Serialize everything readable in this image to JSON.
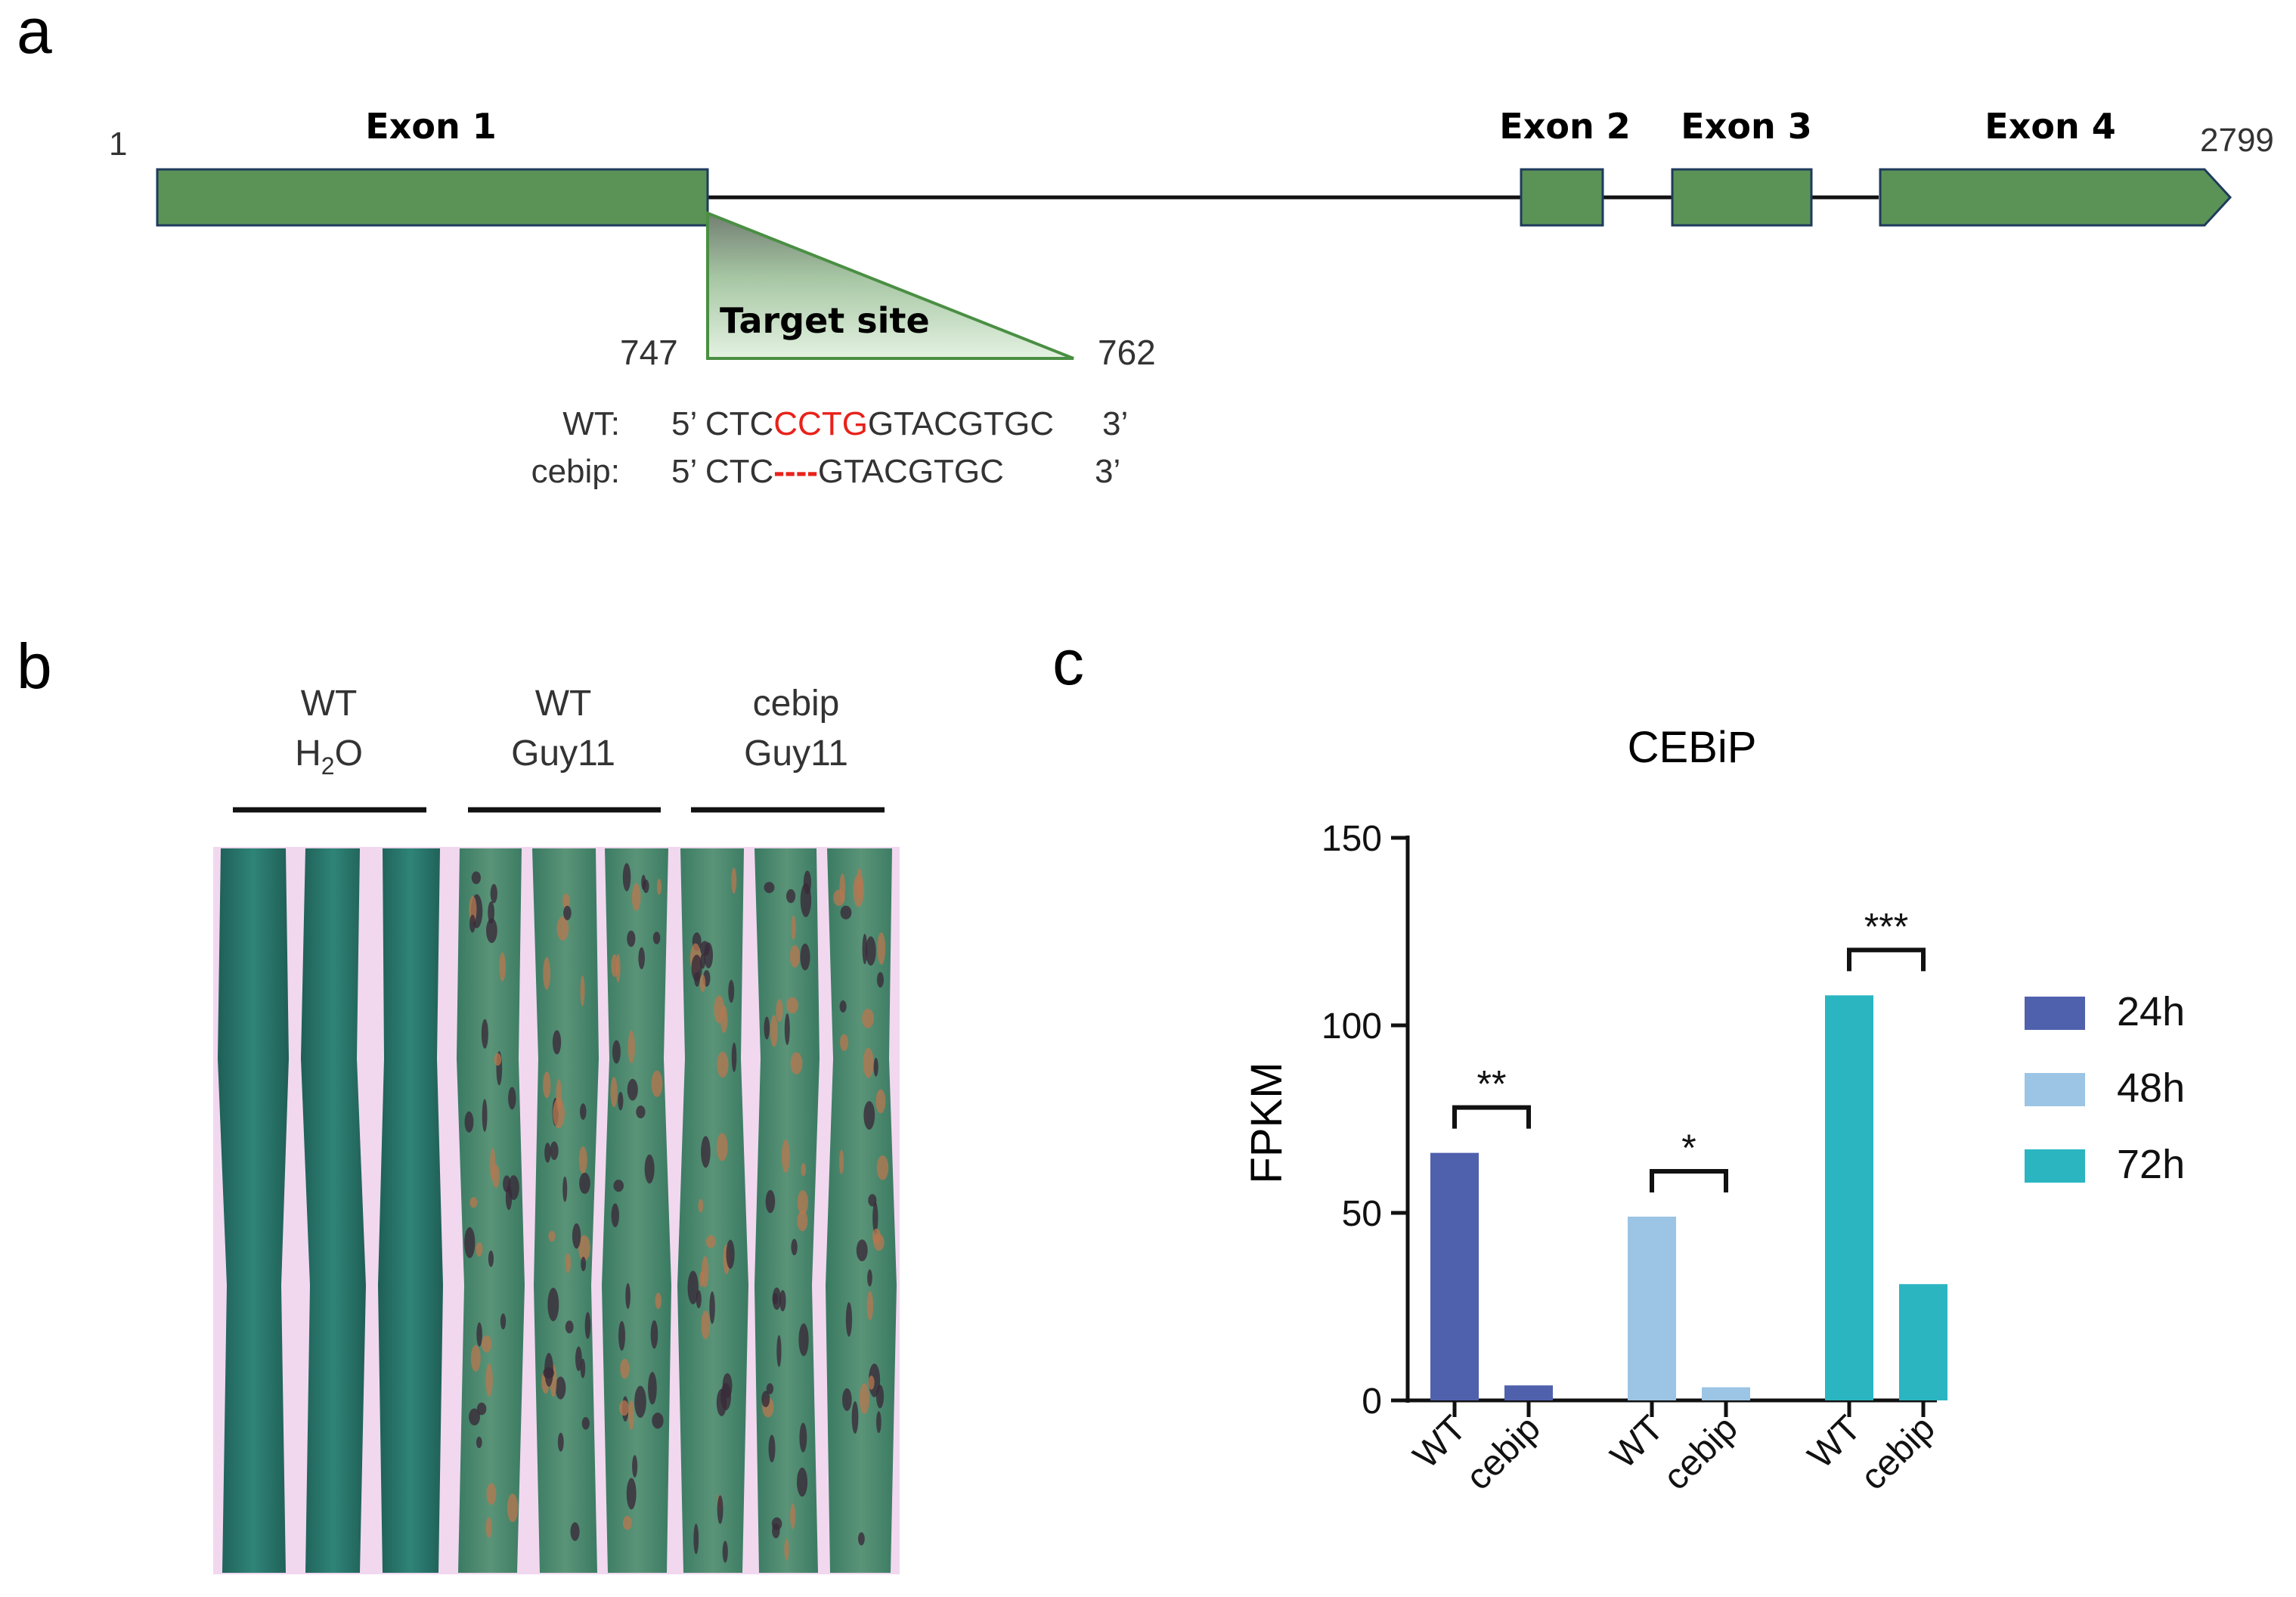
{
  "panels": {
    "a": {
      "label": "a"
    },
    "b": {
      "label": "b"
    },
    "c": {
      "label": "c"
    }
  },
  "gene": {
    "start": "1",
    "end": "2799",
    "exons": [
      "Exon 1",
      "Exon 2",
      "Exon 3",
      "Exon 4"
    ],
    "target_label": "Target site",
    "target_start": "747",
    "target_end": "762",
    "wt_label": "WT:",
    "wt_prime5": "5’ CTC",
    "wt_highlight": "CCTG",
    "wt_rest": "GTACGTGC",
    "wt_prime3": "3’",
    "mut_label": "cebip:",
    "mut_prime5": "5’ CTC",
    "mut_gap": "----",
    "mut_rest": "GTACGTGC",
    "mut_prime3": "3’",
    "colors": {
      "exon": "#5b9357",
      "exon_border": "#1f3b5c",
      "highlight": "#e8221b"
    }
  },
  "leaf_groups": [
    {
      "line1": "WT",
      "line2_main": "H",
      "line2_sub": "2",
      "line2_end": "O"
    },
    {
      "line1": "WT",
      "line2_main": "Guy11",
      "line2_sub": "",
      "line2_end": ""
    },
    {
      "line1": "cebip",
      "line2_main": "Guy11",
      "line2_sub": "",
      "line2_end": ""
    }
  ],
  "chart_data": {
    "type": "bar",
    "title": "CEBiP",
    "ylabel": "FPKM",
    "xlabel": "",
    "ylim": [
      0,
      150
    ],
    "yticks": [
      "0",
      "50",
      "100",
      "150"
    ],
    "groups": [
      {
        "time": "24h",
        "color": "#4f61ad",
        "bars": [
          {
            "label": "WT",
            "value": 66
          },
          {
            "label": "cebip",
            "value": 4
          }
        ],
        "significance": "**"
      },
      {
        "time": "48h",
        "color": "#9cc4e4",
        "bars": [
          {
            "label": "WT",
            "value": 49
          },
          {
            "label": "cebip",
            "value": 3.5
          }
        ],
        "significance": "*"
      },
      {
        "time": "72h",
        "color": "#2ab5c1",
        "bars": [
          {
            "label": "WT",
            "value": 108
          },
          {
            "label": "cebip",
            "value": 31
          }
        ],
        "significance": "***"
      }
    ],
    "legend": [
      {
        "label": "24h",
        "color": "#4f61ad"
      },
      {
        "label": "48h",
        "color": "#9cc4e4"
      },
      {
        "label": "72h",
        "color": "#2ab5c1"
      }
    ],
    "legend_position": "right"
  }
}
